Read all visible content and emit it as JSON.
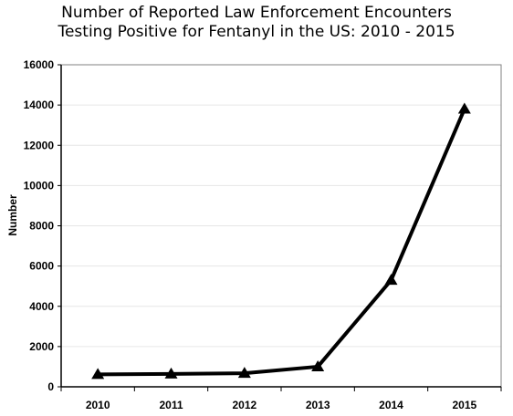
{
  "chart_data": {
    "type": "line",
    "title_lines": [
      "Number of Reported Law Enforcement Encounters",
      "Testing Positive for Fentanyl in the US: 2010 - 2015"
    ],
    "xlabel": "",
    "ylabel": "Number",
    "categories": [
      "2010",
      "2011",
      "2012",
      "2013",
      "2014",
      "2015"
    ],
    "series": [
      {
        "values": [
          618,
          641,
          675,
          1000,
          5300,
          13800
        ]
      }
    ],
    "ylim": [
      0,
      16000
    ],
    "yticks": [
      0,
      2000,
      4000,
      6000,
      8000,
      10000,
      12000,
      14000,
      16000
    ],
    "grid": true,
    "marker": "triangle",
    "colors": {
      "line": "#000000",
      "grid": "#e6e6e6",
      "axis": "#000000"
    }
  }
}
